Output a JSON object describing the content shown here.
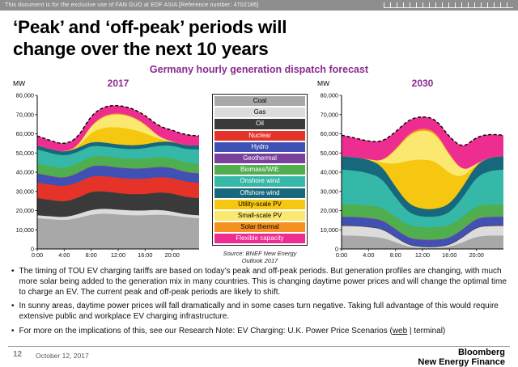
{
  "colors": {
    "accent_purple": "#8a2b8f",
    "topbar_gray": "#8e8e8e"
  },
  "top_bar": {
    "notice": "This document is for the exclusive use of FAN GUO at EDF ASIA [Reference number: 4702186]"
  },
  "title": {
    "line1": "‘Peak’ and ‘off-peak’ periods will",
    "line2": "change over the next 10 years"
  },
  "subtitle": "Germany hourly generation dispatch forecast",
  "source": "Source: BNEF New Energy Outlook 2017",
  "bullets": {
    "items": [
      {
        "text": "The timing of TOU EV charging tariffs are based on today’s peak and off-peak periods. But generation profiles are changing, with much more solar being added to the generation mix in many countries. This is changing daytime power prices and will change the optimal time to charge an EV. The current peak and off-peak periods are likely to shift."
      },
      {
        "text": "In sunny areas, daytime power prices will fall dramatically and in some cases turn negative. Taking full advantage of this would require extensive public and workplace EV charging infrastructure."
      },
      {
        "prefix": "For more on the implications of this, see our Research Note: EV Charging: U.K. Power Price Scenarios (",
        "link_web": "web",
        "separator": " | ",
        "link_terminal": "terminal",
        "suffix": ")"
      }
    ]
  },
  "footer": {
    "page": "12",
    "date": "October 12, 2017",
    "brand1": "Bloomberg",
    "brand2": "New Energy Finance"
  },
  "chart_data": [
    {
      "type": "area",
      "stacked": true,
      "title": "2017",
      "ylabel": "MW",
      "ylim": [
        0,
        80000
      ],
      "x_unit": "hour of day",
      "x": [
        0,
        2,
        4,
        6,
        8,
        10,
        12,
        14,
        16,
        18,
        20,
        22,
        24
      ],
      "x_tick_hours": [
        0,
        4,
        8,
        12,
        16,
        20
      ],
      "x_tick_labels": [
        "0:00",
        "4:00",
        "8:00",
        "12:00",
        "16:00",
        "20:00"
      ],
      "top_line": {
        "style": "dashed",
        "color": "#000000"
      },
      "series": [
        {
          "name": "Coal",
          "color": "#a8a8a8",
          "values": [
            16000,
            15500,
            15000,
            16000,
            18000,
            18500,
            18000,
            17500,
            17500,
            18000,
            17500,
            16500,
            16000
          ]
        },
        {
          "name": "Gas",
          "color": "#dcdcdc",
          "values": [
            1500,
            1500,
            1500,
            2000,
            2500,
            2500,
            2500,
            2500,
            2500,
            2500,
            2000,
            1500,
            1500
          ]
        },
        {
          "name": "Oil",
          "color": "#3a3a3a",
          "values": [
            9000,
            8500,
            8000,
            8500,
            9500,
            9000,
            8500,
            8500,
            8500,
            9000,
            9500,
            9000,
            9000
          ]
        },
        {
          "name": "Nuclear",
          "color": "#e63329",
          "values": [
            8000,
            8000,
            8000,
            8000,
            8000,
            8000,
            8000,
            8000,
            8000,
            8000,
            8000,
            8000,
            8000
          ]
        },
        {
          "name": "Hydro",
          "color": "#3f51b5",
          "values": [
            4500,
            4000,
            4000,
            4500,
            5000,
            5000,
            5000,
            5000,
            5000,
            5000,
            5000,
            4500,
            4500
          ]
        },
        {
          "name": "Geothermal",
          "color": "#7b3f9e",
          "values": [
            400,
            400,
            400,
            400,
            400,
            400,
            400,
            400,
            400,
            400,
            400,
            400,
            400
          ]
        },
        {
          "name": "Biomass/WtE",
          "color": "#4faf4e",
          "values": [
            5000,
            5000,
            5000,
            5000,
            5000,
            5000,
            5000,
            5000,
            5000,
            5000,
            5000,
            5000,
            5000
          ]
        },
        {
          "name": "Onshore wind",
          "color": "#35b8a8",
          "values": [
            7500,
            7000,
            6500,
            6000,
            5500,
            5000,
            5000,
            5000,
            5500,
            6000,
            6500,
            7000,
            7500
          ]
        },
        {
          "name": "Offshore wind",
          "color": "#17677d",
          "values": [
            2000,
            2000,
            2000,
            2000,
            2000,
            2000,
            2000,
            2000,
            2000,
            2000,
            2000,
            2000,
            2000
          ]
        },
        {
          "name": "Utility-scale PV",
          "color": "#f6c710",
          "values": [
            0,
            0,
            0,
            500,
            5000,
            8000,
            9000,
            8500,
            6000,
            1500,
            0,
            0,
            0
          ]
        },
        {
          "name": "Small-scale PV",
          "color": "#fbe870",
          "values": [
            0,
            0,
            0,
            300,
            3500,
            6000,
            7000,
            6500,
            4500,
            1000,
            0,
            0,
            0
          ]
        },
        {
          "name": "Solar thermal",
          "color": "#f59120",
          "values": [
            0,
            0,
            0,
            100,
            300,
            450,
            500,
            450,
            300,
            100,
            0,
            0,
            0
          ]
        },
        {
          "name": "Flexible capacity",
          "color": "#ee2d90",
          "values": [
            5000,
            4500,
            4000,
            4500,
            5000,
            4500,
            4000,
            4000,
            4500,
            5500,
            6000,
            5500,
            5000
          ]
        }
      ]
    },
    {
      "type": "area",
      "stacked": true,
      "title": "2030",
      "ylabel": "MW",
      "ylim": [
        0,
        80000
      ],
      "x_unit": "hour of day",
      "x": [
        0,
        2,
        4,
        6,
        8,
        10,
        12,
        14,
        16,
        18,
        20,
        22,
        24
      ],
      "x_tick_hours": [
        0,
        4,
        8,
        12,
        16,
        20
      ],
      "x_tick_labels": [
        "0:00",
        "4:00",
        "8:00",
        "12:00",
        "16:00",
        "20:00"
      ],
      "top_line": {
        "style": "dashed",
        "color": "#000000"
      },
      "series": [
        {
          "name": "Coal",
          "color": "#a8a8a8",
          "values": [
            7000,
            7000,
            6500,
            6000,
            3500,
            1000,
            500,
            500,
            1000,
            3500,
            6500,
            7000,
            7000
          ]
        },
        {
          "name": "Gas",
          "color": "#dcdcdc",
          "values": [
            5000,
            5000,
            4800,
            4500,
            2500,
            800,
            400,
            400,
            800,
            2500,
            4800,
            5000,
            5000
          ]
        },
        {
          "name": "Oil",
          "color": "#3a3a3a",
          "values": [
            300,
            300,
            300,
            300,
            300,
            300,
            300,
            300,
            300,
            300,
            300,
            300,
            300
          ]
        },
        {
          "name": "Nuclear",
          "color": "#e63329",
          "values": [
            0,
            0,
            0,
            0,
            0,
            0,
            0,
            0,
            0,
            0,
            0,
            0,
            0
          ]
        },
        {
          "name": "Hydro",
          "color": "#3f51b5",
          "values": [
            4000,
            4000,
            4000,
            4000,
            3500,
            3000,
            3000,
            3000,
            3000,
            3500,
            4000,
            4000,
            4000
          ]
        },
        {
          "name": "Geothermal",
          "color": "#7b3f9e",
          "values": [
            500,
            500,
            500,
            500,
            500,
            500,
            500,
            500,
            500,
            500,
            500,
            500,
            500
          ]
        },
        {
          "name": "Biomass/WtE",
          "color": "#4faf4e",
          "values": [
            6500,
            6500,
            6500,
            6500,
            6500,
            6500,
            6500,
            6500,
            6500,
            6500,
            6500,
            6500,
            6500
          ]
        },
        {
          "name": "Onshore wind",
          "color": "#35b8a8",
          "values": [
            18000,
            17500,
            17000,
            15000,
            10000,
            6500,
            5500,
            5500,
            6500,
            10000,
            15000,
            17500,
            18000
          ]
        },
        {
          "name": "Offshore wind",
          "color": "#17677d",
          "values": [
            7000,
            7000,
            7000,
            6500,
            5500,
            4500,
            4000,
            4000,
            4500,
            5500,
            6500,
            7000,
            7000
          ]
        },
        {
          "name": "Utility-scale PV",
          "color": "#f6c710",
          "values": [
            0,
            0,
            0,
            1500,
            12000,
            23000,
            26000,
            25000,
            16000,
            5000,
            200,
            0,
            0
          ]
        },
        {
          "name": "Small-scale PV",
          "color": "#fbe870",
          "values": [
            0,
            0,
            0,
            800,
            7000,
            13500,
            15500,
            14500,
            9500,
            3000,
            100,
            0,
            0
          ]
        },
        {
          "name": "Solar thermal",
          "color": "#f59120",
          "values": [
            0,
            0,
            0,
            200,
            600,
            900,
            1000,
            900,
            600,
            200,
            0,
            0,
            0
          ]
        },
        {
          "name": "Flexible capacity",
          "color": "#ee2d90",
          "values": [
            11000,
            10000,
            9500,
            10000,
            9000,
            7000,
            6000,
            6500,
            9000,
            12000,
            14000,
            12000,
            11000
          ]
        }
      ]
    }
  ]
}
